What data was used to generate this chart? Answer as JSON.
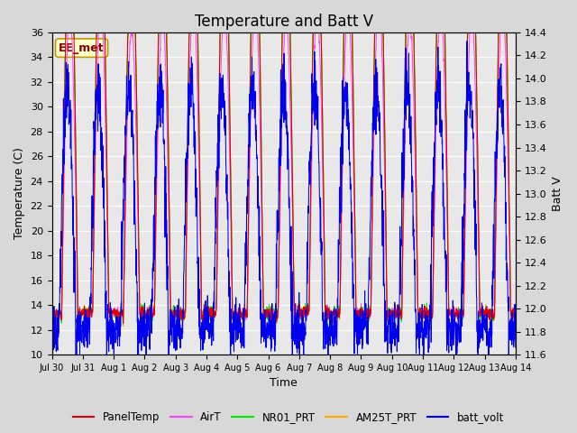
{
  "title": "Temperature and Batt V",
  "xlabel": "Time",
  "ylabel_left": "Temperature (C)",
  "ylabel_right": "Batt V",
  "ylim_left": [
    10,
    36
  ],
  "ylim_right": [
    11.6,
    14.4
  ],
  "yticks_left": [
    10,
    12,
    14,
    16,
    18,
    20,
    22,
    24,
    26,
    28,
    30,
    32,
    34,
    36
  ],
  "yticks_right": [
    11.6,
    11.8,
    12.0,
    12.2,
    12.4,
    12.6,
    12.8,
    13.0,
    13.2,
    13.4,
    13.6,
    13.8,
    14.0,
    14.2,
    14.4
  ],
  "xtick_labels": [
    "Jul 30",
    "Jul 31",
    "Aug 1",
    "Aug 2",
    "Aug 3",
    "Aug 4",
    "Aug 5",
    "Aug 6",
    "Aug 7",
    "Aug 8",
    "Aug 9",
    "Aug 10",
    "Aug 11",
    "Aug 12",
    "Aug 13",
    "Aug 14"
  ],
  "colors": {
    "PanelTemp": "#dd0000",
    "AirT": "#ff44ff",
    "NR01_PRT": "#00ee00",
    "AM25T_PRT": "#ffaa00",
    "batt_volt": "#0000ee"
  },
  "legend_labels": [
    "PanelTemp",
    "AirT",
    "NR01_PRT",
    "AM25T_PRT",
    "batt_volt"
  ],
  "annotation_text": "EE_met",
  "annotation_color": "#880000",
  "annotation_bg": "#ffffcc",
  "background_color": "#e8e8e8",
  "grid_color": "#ffffff",
  "title_fontsize": 12,
  "label_fontsize": 9,
  "tick_fontsize": 8,
  "figsize": [
    6.4,
    4.8
  ],
  "dpi": 100
}
